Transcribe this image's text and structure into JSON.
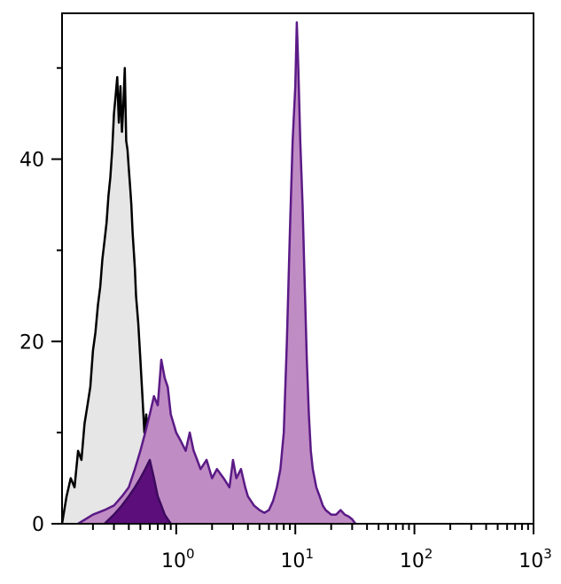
{
  "chart_data": {
    "type": "area",
    "title": "",
    "xlabel": "",
    "ylabel": "",
    "x_scale": "log",
    "xlim": [
      0.11,
      1000
    ],
    "ylim": [
      0,
      56
    ],
    "grid": false,
    "legend": "none",
    "x_ticks": [
      {
        "value": 1,
        "base": "10",
        "exp": "0"
      },
      {
        "value": 10,
        "base": "10",
        "exp": "1"
      },
      {
        "value": 100,
        "base": "10",
        "exp": "2"
      },
      {
        "value": 1000,
        "base": "10",
        "exp": "3"
      }
    ],
    "y_ticks": [
      {
        "value": 0,
        "label": "0"
      },
      {
        "value": 20,
        "label": "20"
      },
      {
        "value": 40,
        "label": "40"
      }
    ],
    "series": [
      {
        "fill": "#e6e6e6",
        "stroke": "#000000",
        "x": [
          0.11,
          0.12,
          0.13,
          0.14,
          0.15,
          0.16,
          0.17,
          0.18,
          0.19,
          0.2,
          0.21,
          0.22,
          0.23,
          0.24,
          0.25,
          0.26,
          0.27,
          0.28,
          0.29,
          0.3,
          0.31,
          0.32,
          0.33,
          0.34,
          0.35,
          0.36,
          0.37,
          0.38,
          0.39,
          0.4,
          0.41,
          0.42,
          0.43,
          0.44,
          0.45,
          0.46,
          0.48,
          0.5,
          0.52,
          0.54,
          0.56,
          0.58,
          0.6,
          0.62,
          0.65,
          0.68,
          0.72,
          0.76,
          0.8,
          0.85,
          0.9,
          1.0
        ],
        "values": [
          0,
          3,
          5,
          4,
          8,
          7,
          11,
          13,
          15,
          19,
          21,
          24,
          26,
          29,
          31,
          33,
          36,
          38,
          41,
          45,
          47,
          49,
          44,
          48,
          43,
          46,
          50,
          42,
          41,
          39,
          37,
          35,
          32,
          30,
          28,
          25,
          22,
          18,
          14,
          10,
          12,
          8,
          6,
          4,
          3,
          2,
          1.5,
          1,
          0.8,
          0.5,
          0.3,
          0
        ]
      },
      {
        "fill": "#c08cc4",
        "stroke": "#5b1a86",
        "x": [
          0.15,
          0.2,
          0.25,
          0.3,
          0.35,
          0.4,
          0.45,
          0.5,
          0.55,
          0.6,
          0.65,
          0.7,
          0.75,
          0.8,
          0.85,
          0.9,
          0.95,
          1.0,
          1.1,
          1.2,
          1.3,
          1.4,
          1.5,
          1.6,
          1.8,
          2.0,
          2.2,
          2.5,
          2.8,
          3.0,
          3.2,
          3.5,
          3.8,
          4.0,
          4.5,
          5.0,
          5.5,
          6.0,
          6.5,
          7.0,
          7.5,
          8.0,
          8.5,
          9.0,
          9.5,
          10.0,
          10.3,
          10.6,
          11.0,
          11.5,
          12.0,
          12.5,
          13.0,
          13.5,
          14.0,
          15.0,
          16.0,
          17.0,
          18.0,
          20.0,
          22.0,
          24.0,
          26.0,
          28.0,
          30.0,
          32.0
        ],
        "values": [
          0,
          1,
          1.5,
          2,
          3,
          4,
          6,
          8,
          10,
          12,
          14,
          13,
          18,
          16,
          15,
          12,
          11,
          10,
          9,
          8,
          10,
          8,
          7,
          6,
          7,
          5,
          6,
          5,
          4,
          7,
          5,
          6,
          4,
          3,
          2,
          1.5,
          1.2,
          1.5,
          2.5,
          4,
          6,
          10,
          20,
          32,
          42,
          48,
          55,
          50,
          42,
          35,
          26,
          18,
          12,
          8,
          6,
          4,
          3,
          2,
          1.5,
          1,
          1,
          1.5,
          1,
          0.8,
          0.5,
          0
        ]
      },
      {
        "fill": "#5c0f7a",
        "stroke": "#3c0a5e",
        "x": [
          0.25,
          0.3,
          0.35,
          0.4,
          0.45,
          0.5,
          0.55,
          0.6,
          0.65,
          0.7,
          0.75,
          0.8,
          0.85,
          0.9
        ],
        "values": [
          0,
          1,
          2,
          3,
          4,
          5,
          6,
          7,
          5,
          3,
          2,
          1,
          0.5,
          0
        ]
      }
    ]
  }
}
